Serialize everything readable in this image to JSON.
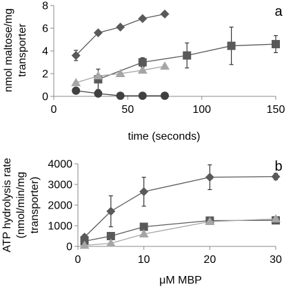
{
  "chart_data": [
    {
      "panel": "a",
      "type": "scatter",
      "xlabel": "time (seconds)",
      "ylabel": [
        "nmol maltose/mg",
        "transporter"
      ],
      "xlim": [
        0,
        150
      ],
      "ylim": [
        0,
        8
      ],
      "xticks": [
        0,
        50,
        100,
        150
      ],
      "yticks": [
        0,
        2,
        4,
        6,
        8
      ],
      "grid": false,
      "series": [
        {
          "marker": "diamond",
          "color": "#595959",
          "x": [
            15,
            30,
            45,
            60,
            75
          ],
          "y": [
            3.6,
            5.6,
            6.1,
            6.85,
            7.25
          ],
          "err": [
            0.45,
            0.15,
            0.1,
            0.1,
            0.1
          ]
        },
        {
          "marker": "square",
          "color": "#595959",
          "x": [
            30,
            60,
            90,
            120,
            150
          ],
          "y": [
            1.5,
            3.0,
            3.6,
            4.45,
            4.6
          ],
          "err": [
            0.9,
            0.4,
            1.1,
            1.65,
            0.75
          ]
        },
        {
          "marker": "triangle",
          "color": "#a6a6a6",
          "x": [
            15,
            30,
            45,
            60,
            75
          ],
          "y": [
            1.2,
            1.8,
            2.0,
            2.3,
            2.65
          ],
          "err": [
            0.1,
            0.1,
            0.1,
            0.1,
            0.1
          ]
        },
        {
          "marker": "circle",
          "color": "#404040",
          "x": [
            15,
            30,
            45,
            60,
            75
          ],
          "y": [
            0.5,
            0.25,
            0.05,
            0.05,
            0.05
          ],
          "err": [
            0,
            0,
            0,
            0,
            0
          ]
        }
      ]
    },
    {
      "panel": "b",
      "type": "scatter",
      "xlabel": "μM MBP",
      "ylabel": [
        "ATP hydrolysis rate",
        "(nmol/min/mg",
        "transporter)"
      ],
      "xlim": [
        0,
        30
      ],
      "ylim": [
        0,
        4000
      ],
      "xticks": [
        0,
        10,
        20,
        30
      ],
      "yticks": [
        0,
        1000,
        2000,
        3000,
        4000
      ],
      "grid": false,
      "series": [
        {
          "marker": "diamond",
          "color": "#595959",
          "x": [
            1,
            5,
            10,
            20,
            30
          ],
          "y": [
            450,
            1700,
            2650,
            3350,
            3380
          ],
          "err": [
            100,
            750,
            700,
            600,
            150
          ]
        },
        {
          "marker": "square",
          "color": "#595959",
          "x": [
            1,
            5,
            10,
            20,
            30
          ],
          "y": [
            250,
            500,
            950,
            1250,
            1260
          ],
          "err": [
            50,
            50,
            50,
            50,
            50
          ]
        },
        {
          "marker": "triangle",
          "color": "#a6a6a6",
          "x": [
            1,
            5,
            10,
            20,
            30
          ],
          "y": [
            50,
            150,
            600,
            1200,
            1330
          ],
          "err": [
            30,
            30,
            60,
            60,
            60
          ]
        }
      ]
    }
  ]
}
